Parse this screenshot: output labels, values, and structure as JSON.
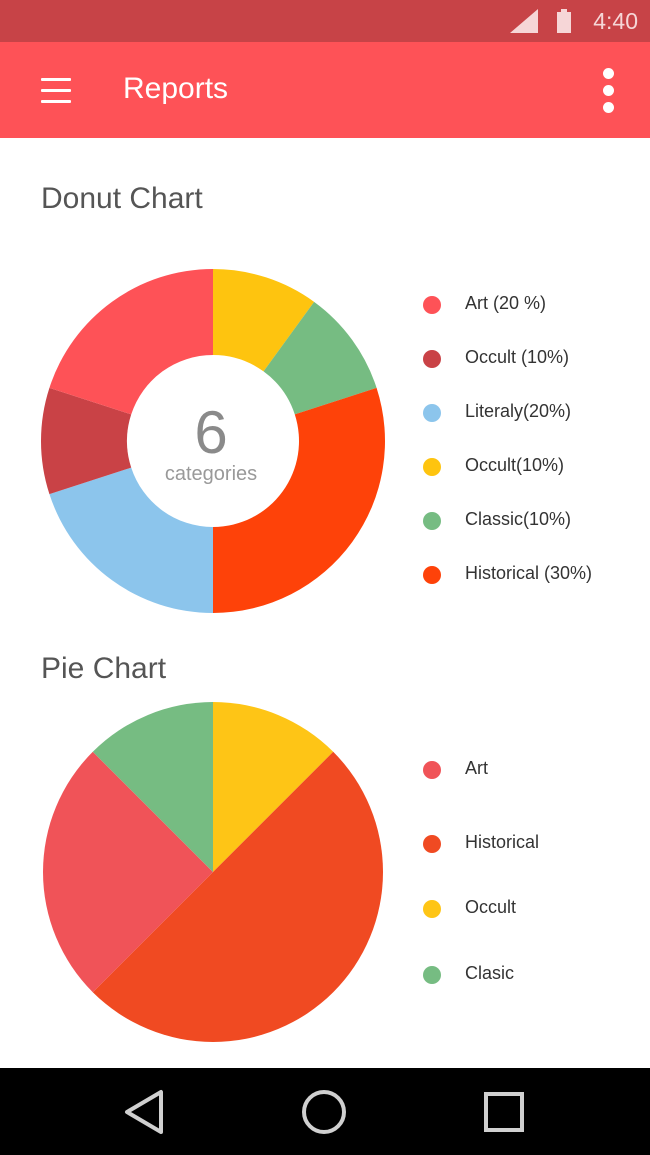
{
  "status_bar": {
    "time": "4:40",
    "signal_icon": "cell-signal-icon",
    "battery_icon": "battery-icon"
  },
  "app_bar": {
    "title": "Reports",
    "menu_icon": "hamburger-menu-icon",
    "overflow_icon": "more-vertical-icon",
    "color": "#fe5257"
  },
  "donut_section": {
    "title": "Donut Chart",
    "center_value": "6",
    "center_label": "categories"
  },
  "pie_section": {
    "title": "Pie Chart"
  },
  "chart_data": [
    {
      "type": "pie",
      "variant": "donut",
      "title": "Donut Chart",
      "categories": [
        "Art (20 %)",
        "Occult (10%)",
        "Literaly(20%)",
        "Occult(10%)",
        "Classic(10%)",
        "Historical (30%)"
      ],
      "values": [
        20,
        10,
        20,
        10,
        10,
        30
      ],
      "colors": [
        "#fe5257",
        "#c94246",
        "#8cc5ec",
        "#fec40f",
        "#76bc82",
        "#fe4209"
      ],
      "draw_order": [
        3,
        4,
        5,
        2,
        1,
        0
      ],
      "legend_position": "right"
    },
    {
      "type": "pie",
      "title": "Pie Chart",
      "categories": [
        "Art",
        "Historical",
        "Occult",
        "Clasic"
      ],
      "values": [
        25,
        50,
        12.5,
        12.5
      ],
      "colors": [
        "#f05358",
        "#f04a22",
        "#fec516",
        "#76bc82"
      ],
      "draw_order": [
        2,
        1,
        0,
        3
      ],
      "legend_position": "right"
    }
  ],
  "nav_bar": {
    "back_icon": "back-triangle-icon",
    "home_icon": "home-circle-icon",
    "recents_icon": "recents-square-icon"
  }
}
